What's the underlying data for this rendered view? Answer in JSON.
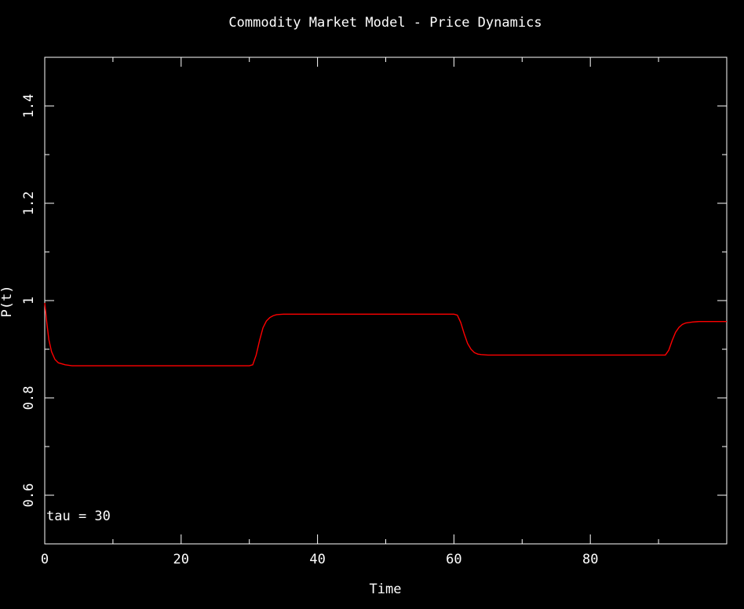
{
  "chart_data": {
    "type": "line",
    "title": "Commodity Market Model - Price Dynamics",
    "xlabel": "Time",
    "ylabel": "P(t)",
    "xlim": [
      0,
      100
    ],
    "ylim": [
      0.5,
      1.5
    ],
    "xticks": [
      0,
      20,
      40,
      60,
      80
    ],
    "yticks": [
      0.6,
      0.8,
      1,
      1.2,
      1.4
    ],
    "x_minor_step": 10,
    "y_minor_step": 0.1,
    "grid": false,
    "annotation": "tau = 30",
    "colors": {
      "background": "#000000",
      "axes": "#ffffff",
      "line": "#ff0000"
    },
    "series": [
      {
        "color": "#ff0000",
        "x": [
          0,
          0.3,
          0.6,
          1,
          1.5,
          2,
          3,
          4,
          5,
          10,
          20,
          30,
          30.5,
          31,
          31.5,
          32,
          32.5,
          33,
          33.5,
          34,
          35,
          36,
          40,
          50,
          60,
          60.5,
          61,
          61.5,
          62,
          62.5,
          63,
          63.5,
          64,
          65,
          66,
          70,
          80,
          90,
          91,
          91.5,
          92,
          92.5,
          93,
          93.5,
          94,
          95,
          96,
          97,
          100
        ],
        "y": [
          0.995,
          0.955,
          0.92,
          0.895,
          0.879,
          0.872,
          0.868,
          0.866,
          0.866,
          0.866,
          0.866,
          0.866,
          0.868,
          0.888,
          0.918,
          0.944,
          0.958,
          0.965,
          0.969,
          0.971,
          0.972,
          0.972,
          0.972,
          0.972,
          0.972,
          0.97,
          0.955,
          0.932,
          0.912,
          0.9,
          0.893,
          0.89,
          0.889,
          0.888,
          0.888,
          0.888,
          0.888,
          0.888,
          0.888,
          0.898,
          0.918,
          0.935,
          0.945,
          0.951,
          0.954,
          0.956,
          0.957,
          0.957,
          0.957
        ]
      }
    ]
  }
}
